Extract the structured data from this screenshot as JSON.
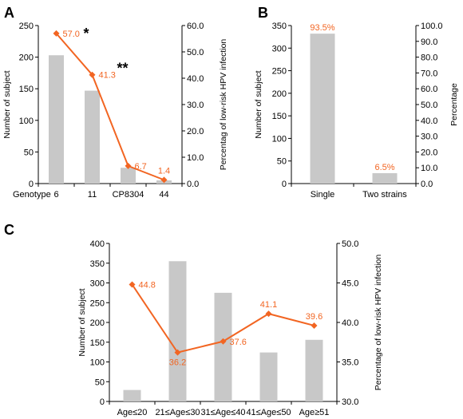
{
  "colors": {
    "bar": "#c8c8c8",
    "line": "#f26522",
    "label": "#f26522",
    "axis": "#000000"
  },
  "chart_data": [
    {
      "panel": "A",
      "type": "bar+line",
      "categories": [
        "6",
        "11",
        "CP8304",
        "44"
      ],
      "x_prefix_label": "Genotype",
      "bar_values": [
        203,
        147,
        25,
        5
      ],
      "line_values": [
        57.0,
        41.3,
        6.7,
        1.4
      ],
      "line_labels": [
        "57.0",
        "41.3",
        "6.7",
        "1.4"
      ],
      "annotations": [
        {
          "index": 0,
          "text": "*"
        },
        {
          "index": 1,
          "text": "**"
        }
      ],
      "ylabel_left": "Number of subject",
      "ylabel_right": "Percentag of low-risk HPV infection",
      "ylim_left": [
        0,
        250
      ],
      "yticks_left": [
        "0",
        "50",
        "100",
        "150",
        "200",
        "250"
      ],
      "ylim_right": [
        0,
        60
      ],
      "yticks_right": [
        "0.0",
        "10.0",
        "20.0",
        "30.0",
        "40.0",
        "50.0",
        "60.0"
      ],
      "grid": false
    },
    {
      "panel": "B",
      "type": "bar",
      "categories": [
        "Single",
        "Two strains"
      ],
      "bar_values": [
        332,
        23
      ],
      "bar_labels": [
        "93.5%",
        "6.5%"
      ],
      "ylabel_left": "Number of subject",
      "ylabel_right": "Percentage",
      "ylim_left": [
        0,
        350
      ],
      "yticks_left": [
        "0",
        "50",
        "100",
        "150",
        "200",
        "250",
        "300",
        "350"
      ],
      "ylim_right": [
        0,
        100
      ],
      "yticks_right": [
        "0.0",
        "10.0",
        "20.0",
        "30.0",
        "40.0",
        "50.0",
        "60.0",
        "70.0",
        "80.0",
        "90.0",
        "100.0"
      ],
      "grid": false
    },
    {
      "panel": "C",
      "type": "bar+line",
      "categories": [
        "Age≤20",
        "21≤Age≤30",
        "31≤Age≤40",
        "41≤Age≤50",
        "Age≥51"
      ],
      "bar_values": [
        29,
        355,
        275,
        124,
        156
      ],
      "line_values": [
        44.8,
        36.2,
        37.6,
        41.1,
        39.6
      ],
      "line_labels": [
        "44.8",
        "36.2",
        "37.6",
        "41.1",
        "39.6"
      ],
      "ylabel_left": "Number of subject",
      "ylabel_right": "Percentage of low-risk HPV infection",
      "ylim_left": [
        0,
        400
      ],
      "yticks_left": [
        "0",
        "50",
        "100",
        "150",
        "200",
        "250",
        "300",
        "350",
        "400"
      ],
      "ylim_right": [
        30,
        50
      ],
      "yticks_right": [
        "30.0",
        "35.0",
        "40.0",
        "45.0",
        "50.0"
      ],
      "grid": false
    }
  ]
}
